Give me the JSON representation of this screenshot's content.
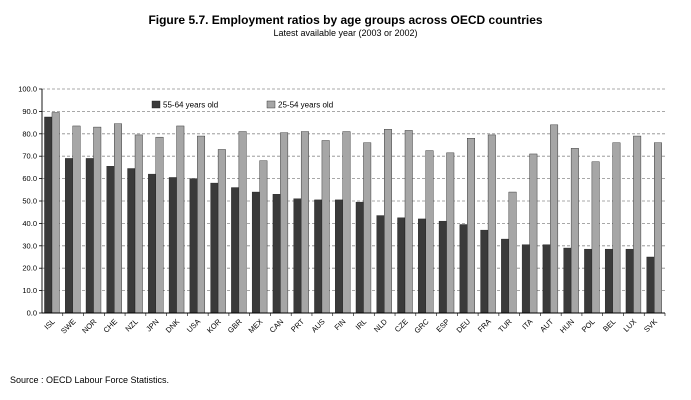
{
  "title": "Figure 5.7. Employment ratios by age groups across OECD countries",
  "subtitle": "Latest available year (2003 or 2002)",
  "source": "Source : OECD Labour Force Statistics.",
  "chart_data": {
    "type": "bar",
    "title": "Figure 5.7. Employment ratios by age groups across OECD countries",
    "subtitle": "Latest available year (2003 or 2002)",
    "xlabel": "",
    "ylabel": "",
    "ylim": [
      0,
      100
    ],
    "yticks": [
      "0.0",
      "10.0",
      "20.0",
      "30.0",
      "40.0",
      "50.0",
      "60.0",
      "70.0",
      "80.0",
      "90.0",
      "100.0"
    ],
    "grid": "horizontal dashed",
    "legend_position": "top",
    "categories": [
      "ISL",
      "SWE",
      "NOR",
      "CHE",
      "NZL",
      "JPN",
      "DNK",
      "USA",
      "KOR",
      "GBR",
      "MEX",
      "CAN",
      "PRT",
      "AUS",
      "FIN",
      "IRL",
      "NLD",
      "CZE",
      "GRC",
      "ESP",
      "DEU",
      "FRA",
      "TUR",
      "ITA",
      "AUT",
      "HUN",
      "POL",
      "BEL",
      "LUX",
      "SVK"
    ],
    "series": [
      {
        "name": "55-64 years old",
        "color": "#3a3a3a",
        "values": [
          87.5,
          69,
          69,
          65.5,
          64.5,
          62,
          60.5,
          60,
          58,
          56,
          54,
          53,
          51,
          50.5,
          50.5,
          49.5,
          43.5,
          42.5,
          42,
          41,
          39.5,
          37,
          33,
          30.5,
          30.5,
          29,
          28.5,
          28.5,
          28.5,
          25
        ]
      },
      {
        "name": "25-54 years old",
        "color": "#a6a6a6",
        "values": [
          89.5,
          83.5,
          83,
          84.5,
          79.5,
          78.5,
          83.5,
          79,
          73,
          81,
          68,
          80.5,
          81,
          77,
          81,
          76,
          82,
          81.5,
          72.5,
          71.5,
          78,
          79.5,
          54,
          71,
          84,
          73.5,
          67.5,
          76,
          79,
          76
        ]
      }
    ]
  }
}
